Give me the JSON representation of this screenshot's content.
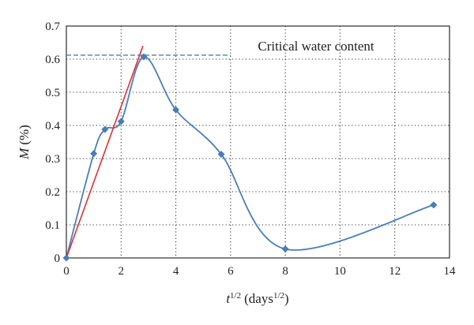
{
  "chart_data": {
    "type": "scatter",
    "title": "",
    "xlabel": {
      "var": "t",
      "exp": "1/2",
      "unit": "(days",
      "unit_exp": "1/2",
      "close": ")"
    },
    "ylabel": {
      "var": "M",
      "unit": "(%)"
    },
    "xlim": [
      0,
      14
    ],
    "ylim": [
      0,
      0.7
    ],
    "xticks": [
      "0",
      "2",
      "4",
      "6",
      "8",
      "10",
      "12",
      "14"
    ],
    "yticks": [
      "0",
      "0.1",
      "0.2",
      "0.3",
      "0.4",
      "0.5",
      "0.6",
      "0.7"
    ],
    "grid": "dotted",
    "series": [
      {
        "style": "smooth-line-with-diamond-markers",
        "color": "#4a7ebb",
        "x": [
          0,
          1,
          1.41,
          2,
          2.83,
          4,
          5.66,
          8,
          13.42
        ],
        "y": [
          0,
          0.315,
          0.388,
          0.412,
          0.607,
          0.447,
          0.313,
          0.027,
          0.16
        ]
      },
      {
        "style": "line",
        "color": "#e03030",
        "x": [
          0,
          2.8
        ],
        "y": [
          0,
          0.64
        ]
      }
    ],
    "reference_line": {
      "y": 0.612,
      "x_end": 6,
      "color": "#4a7ebb",
      "style": "dashed",
      "label": "Critical water content"
    }
  }
}
